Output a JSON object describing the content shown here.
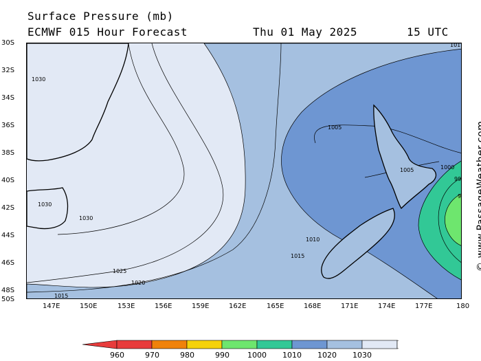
{
  "header": {
    "title": "Surface Pressure (mb)",
    "model": "ECMWF 015 Hour Forecast",
    "date": "Thu 01 May 2025",
    "time": "15 UTC"
  },
  "credit": "© www.PassageWeather.com",
  "lat_labels": [
    "30S",
    "32S",
    "34S",
    "36S",
    "38S",
    "40S",
    "42S",
    "44S",
    "46S",
    "48S",
    "50S"
  ],
  "lon_labels": [
    "147E",
    "150E",
    "153E",
    "156E",
    "159E",
    "162E",
    "165E",
    "168E",
    "171E",
    "174E",
    "177E",
    "180"
  ],
  "isobar_labels": {
    "a": "1030",
    "b": "1030",
    "c": "1030",
    "d": "1025",
    "e": "1020",
    "f": "1015",
    "g": "1005",
    "h": "1005",
    "i": "1000",
    "j": "99",
    "k": "9",
    "l": "1010",
    "m": "1015",
    "n": "101"
  },
  "colorbar": {
    "labels": [
      "960",
      "970",
      "980",
      "990",
      "1000",
      "1010",
      "1020",
      "1030"
    ],
    "colors": [
      "#e83c3c",
      "#f0820a",
      "#f5d20a",
      "#6ee66e",
      "#32c896",
      "#6e96d2",
      "#a5c0e0",
      "#e2e9f5"
    ]
  },
  "fills": {
    "land": "#e2e9f5",
    "high": "#e2e9f5",
    "mid": "#a5c0e0",
    "low": "#6e96d2",
    "deep": "#32c896",
    "core": "#6ee66e"
  }
}
